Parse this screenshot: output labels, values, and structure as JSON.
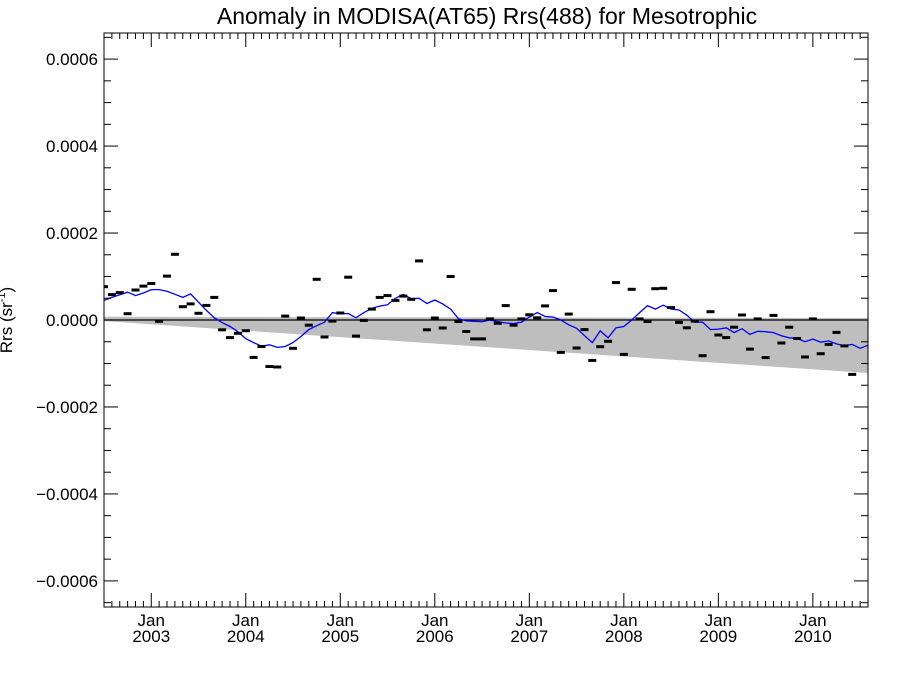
{
  "chart_data": {
    "type": "scatter",
    "title": "Anomaly in MODISA(AT65) Rrs(488) for Mesotrophic",
    "xlabel": "",
    "ylabel": "Rrs (sr",
    "ylabel_superscript": "-1",
    "ylabel_close": ")",
    "xlim": [
      "2002-07",
      "2010-08"
    ],
    "ylim": [
      -0.00066,
      0.00066
    ],
    "y_ticks": [
      -0.0006,
      -0.0004,
      -0.0002,
      0.0,
      0.0002,
      0.0004,
      0.0006
    ],
    "y_tick_labels": [
      "−0.0006",
      "−0.0004",
      "−0.0002",
      "0.0000",
      "0.0002",
      "0.0004",
      "0.0006"
    ],
    "x_ticks": [
      {
        "date": "2003-01",
        "month": "Jan",
        "year": "2003"
      },
      {
        "date": "2004-01",
        "month": "Jan",
        "year": "2004"
      },
      {
        "date": "2005-01",
        "month": "Jan",
        "year": "2005"
      },
      {
        "date": "2006-01",
        "month": "Jan",
        "year": "2006"
      },
      {
        "date": "2007-01",
        "month": "Jan",
        "year": "2007"
      },
      {
        "date": "2008-01",
        "month": "Jan",
        "year": "2008"
      },
      {
        "date": "2009-01",
        "month": "Jan",
        "year": "2009"
      },
      {
        "date": "2010-01",
        "month": "Jan",
        "year": "2010"
      }
    ],
    "grid": false,
    "zero_line": true,
    "band": {
      "color": "#bebebe",
      "start_date": "2002-07",
      "end_date": "2010-08",
      "lower": [
        -2.5e-06,
        -0.000122
      ],
      "upper": [
        7.5e-06,
        4.5e-06
      ]
    },
    "monthly_points": {
      "name": "",
      "marker": "dash",
      "color": "#000000",
      "points": [
        [
          "2002-07",
          7.65e-05
        ],
        [
          "2002-08",
          5.85e-05
        ],
        [
          "2002-09",
          6.3e-05
        ],
        [
          "2002-10",
          1.45e-05
        ],
        [
          "2002-11",
          6.9e-05
        ],
        [
          "2002-12",
          7.8e-05
        ],
        [
          "2003-01",
          8.4e-05
        ],
        [
          "2003-02",
          -3e-06
        ],
        [
          "2003-03",
          0.000101
        ],
        [
          "2003-04",
          0.000151
        ],
        [
          "2003-05",
          3.05e-05
        ],
        [
          "2003-06",
          3.7e-05
        ],
        [
          "2003-07",
          1.55e-05
        ],
        [
          "2003-08",
          3.35e-05
        ],
        [
          "2003-09",
          5.2e-05
        ],
        [
          "2003-10",
          -2.25e-05
        ],
        [
          "2003-11",
          -4.05e-05
        ],
        [
          "2003-12",
          -3.05e-05
        ],
        [
          "2004-01",
          -2.45e-05
        ],
        [
          "2004-02",
          -8.6e-05
        ],
        [
          "2004-03",
          -6.1e-05
        ],
        [
          "2004-04",
          -0.000107
        ],
        [
          "2004-05",
          -0.000108
        ],
        [
          "2004-06",
          9e-06
        ],
        [
          "2004-07",
          -6.5e-05
        ],
        [
          "2004-08",
          4.5e-06
        ],
        [
          "2004-09",
          -1.2e-05
        ],
        [
          "2004-10",
          9.35e-05
        ],
        [
          "2004-11",
          -3.9e-05
        ],
        [
          "2004-12",
          -2.5e-06
        ],
        [
          "2005-01",
          1.6e-05
        ],
        [
          "2005-02",
          9.85e-05
        ],
        [
          "2005-03",
          -3.7e-05
        ],
        [
          "2005-04",
          -1e-06
        ],
        [
          "2005-05",
          2.5e-05
        ],
        [
          "2005-06",
          5.2e-05
        ],
        [
          "2005-07",
          5.6e-05
        ],
        [
          "2005-08",
          4.5e-05
        ],
        [
          "2005-09",
          5.5e-05
        ],
        [
          "2005-10",
          4.75e-05
        ],
        [
          "2005-11",
          0.000136
        ],
        [
          "2005-12",
          -2.25e-05
        ],
        [
          "2006-01",
          4.5e-06
        ],
        [
          "2006-02",
          -1.85e-05
        ],
        [
          "2006-03",
          0.0001
        ],
        [
          "2006-04",
          -3.5e-06
        ],
        [
          "2006-05",
          -2.65e-05
        ],
        [
          "2006-06",
          -4.35e-05
        ],
        [
          "2006-07",
          -4.35e-05
        ],
        [
          "2006-08",
          2.5e-06
        ],
        [
          "2006-09",
          -7.5e-06
        ],
        [
          "2006-10",
          3.3e-05
        ],
        [
          "2006-11",
          -1.2e-05
        ],
        [
          "2006-12",
          2.5e-06
        ],
        [
          "2007-01",
          1.2e-05
        ],
        [
          "2007-02",
          5e-06
        ],
        [
          "2007-03",
          3.25e-05
        ],
        [
          "2007-04",
          6.75e-05
        ],
        [
          "2007-05",
          -7.45e-05
        ],
        [
          "2007-06",
          1.35e-05
        ],
        [
          "2007-07",
          -6.45e-05
        ],
        [
          "2007-08",
          -2.2e-05
        ],
        [
          "2007-09",
          -9.3e-05
        ],
        [
          "2007-10",
          -6.15e-05
        ],
        [
          "2007-11",
          -4.9e-05
        ],
        [
          "2007-12",
          8.6e-05
        ],
        [
          "2008-01",
          -7.9e-05
        ],
        [
          "2008-02",
          7.05e-05
        ],
        [
          "2008-03",
          2.5e-06
        ],
        [
          "2008-04",
          -3.5e-06
        ],
        [
          "2008-05",
          7.2e-05
        ],
        [
          "2008-06",
          7.3e-05
        ],
        [
          "2008-07",
          2.85e-05
        ],
        [
          "2008-08",
          -5.5e-06
        ],
        [
          "2008-09",
          -1.8e-05
        ],
        [
          "2008-10",
          -2.5e-06
        ],
        [
          "2008-11",
          -8.2e-05
        ],
        [
          "2008-12",
          1.9e-05
        ],
        [
          "2009-01",
          -3.45e-05
        ],
        [
          "2009-02",
          -4.05e-05
        ],
        [
          "2009-03",
          -1.65e-05
        ],
        [
          "2009-04",
          1.15e-05
        ],
        [
          "2009-05",
          -6.7e-05
        ],
        [
          "2009-06",
          2.5e-06
        ],
        [
          "2009-07",
          -8.65e-05
        ],
        [
          "2009-08",
          1.05e-05
        ],
        [
          "2009-09",
          -5.3e-05
        ],
        [
          "2009-10",
          -1.65e-05
        ],
        [
          "2009-11",
          -4.25e-05
        ],
        [
          "2009-12",
          -8.5e-05
        ],
        [
          "2010-01",
          2.5e-06
        ],
        [
          "2010-02",
          -7.75e-05
        ],
        [
          "2010-03",
          -5.6e-05
        ],
        [
          "2010-04",
          -2.85e-05
        ],
        [
          "2010-05",
          -5.95e-05
        ],
        [
          "2010-06",
          -0.000125
        ]
      ]
    },
    "running_mean": {
      "name": "",
      "color": "#0000ff",
      "points": [
        [
          "2002-07",
          4.5e-05
        ],
        [
          "2002-08",
          5.2e-05
        ],
        [
          "2002-09",
          5.8e-05
        ],
        [
          "2002-10",
          6.4e-05
        ],
        [
          "2002-11",
          5.6e-05
        ],
        [
          "2002-12",
          6.2e-05
        ],
        [
          "2003-01",
          7e-05
        ],
        [
          "2003-02",
          7e-05
        ],
        [
          "2003-03",
          6.6e-05
        ],
        [
          "2003-04",
          5.9e-05
        ],
        [
          "2003-05",
          5.2e-05
        ],
        [
          "2003-06",
          6e-05
        ],
        [
          "2003-07",
          4.1e-05
        ],
        [
          "2003-08",
          2.2e-05
        ],
        [
          "2003-09",
          5e-06
        ],
        [
          "2003-10",
          -6e-06
        ],
        [
          "2003-11",
          -1.5e-05
        ],
        [
          "2003-12",
          -2.7e-05
        ],
        [
          "2004-01",
          -4.3e-05
        ],
        [
          "2004-02",
          -5.2e-05
        ],
        [
          "2004-03",
          -6e-05
        ],
        [
          "2004-04",
          -5.7e-05
        ],
        [
          "2004-05",
          -6.3e-05
        ],
        [
          "2004-06",
          -6.1e-05
        ],
        [
          "2004-07",
          -5.2e-05
        ],
        [
          "2004-08",
          -3.8e-05
        ],
        [
          "2004-09",
          -2.2e-05
        ],
        [
          "2004-10",
          -1.3e-05
        ],
        [
          "2004-11",
          -5e-06
        ],
        [
          "2004-12",
          1.7e-05
        ],
        [
          "2005-01",
          1.4e-05
        ],
        [
          "2005-02",
          1.5e-05
        ],
        [
          "2005-03",
          5e-06
        ],
        [
          "2005-04",
          1.7e-05
        ],
        [
          "2005-05",
          2.7e-05
        ],
        [
          "2005-06",
          3.2e-05
        ],
        [
          "2005-07",
          3.5e-05
        ],
        [
          "2005-08",
          5e-05
        ],
        [
          "2005-09",
          5.9e-05
        ],
        [
          "2005-10",
          4.9e-05
        ],
        [
          "2005-11",
          5e-05
        ],
        [
          "2005-12",
          3.8e-05
        ],
        [
          "2006-01",
          4.6e-05
        ],
        [
          "2006-02",
          3.7e-05
        ],
        [
          "2006-03",
          2.5e-05
        ],
        [
          "2006-04",
          3e-06
        ],
        [
          "2006-05",
          -2e-06
        ],
        [
          "2006-06",
          -3e-06
        ],
        [
          "2006-07",
          -4e-06
        ],
        [
          "2006-08",
          0.0
        ],
        [
          "2006-09",
          -4e-06
        ],
        [
          "2006-10",
          -7e-06
        ],
        [
          "2006-11",
          -8e-06
        ],
        [
          "2006-12",
          -5e-06
        ],
        [
          "2007-01",
          7e-06
        ],
        [
          "2007-02",
          1.7e-05
        ],
        [
          "2007-03",
          8e-06
        ],
        [
          "2007-04",
          7e-06
        ],
        [
          "2007-05",
          0.0
        ],
        [
          "2007-06",
          -1.1e-05
        ],
        [
          "2007-07",
          -1.9e-05
        ],
        [
          "2007-08",
          -3.6e-05
        ],
        [
          "2007-09",
          -5.2e-05
        ],
        [
          "2007-10",
          -2.5e-05
        ],
        [
          "2007-11",
          -4.1e-05
        ],
        [
          "2007-12",
          -1.8e-05
        ],
        [
          "2008-01",
          -1.5e-05
        ],
        [
          "2008-02",
          0.0
        ],
        [
          "2008-03",
          1.7e-05
        ],
        [
          "2008-04",
          3.3e-05
        ],
        [
          "2008-05",
          2.5e-05
        ],
        [
          "2008-06",
          3.4e-05
        ],
        [
          "2008-07",
          2.5e-05
        ],
        [
          "2008-08",
          2.3e-05
        ],
        [
          "2008-09",
          1.1e-05
        ],
        [
          "2008-10",
          -5e-06
        ],
        [
          "2008-11",
          -5e-06
        ],
        [
          "2008-12",
          -2.2e-05
        ],
        [
          "2009-01",
          -2.1e-05
        ],
        [
          "2009-02",
          -1.8e-05
        ],
        [
          "2009-03",
          -2.9e-05
        ],
        [
          "2009-04",
          -2e-05
        ],
        [
          "2009-05",
          -3.3e-05
        ],
        [
          "2009-06",
          -2.6e-05
        ],
        [
          "2009-07",
          -2.7e-05
        ],
        [
          "2009-08",
          -2.9e-05
        ],
        [
          "2009-09",
          -3.6e-05
        ],
        [
          "2009-10",
          -4.1e-05
        ],
        [
          "2009-11",
          -4.2e-05
        ],
        [
          "2009-12",
          -5e-05
        ],
        [
          "2010-01",
          -4.4e-05
        ],
        [
          "2010-02",
          -5.1e-05
        ],
        [
          "2010-03",
          -4.8e-05
        ],
        [
          "2010-04",
          -5.5e-05
        ],
        [
          "2010-05",
          -5.9e-05
        ],
        [
          "2010-06",
          -5.6e-05
        ],
        [
          "2010-07",
          -6.5e-05
        ],
        [
          "2010-08",
          -5.8e-05
        ]
      ]
    }
  }
}
